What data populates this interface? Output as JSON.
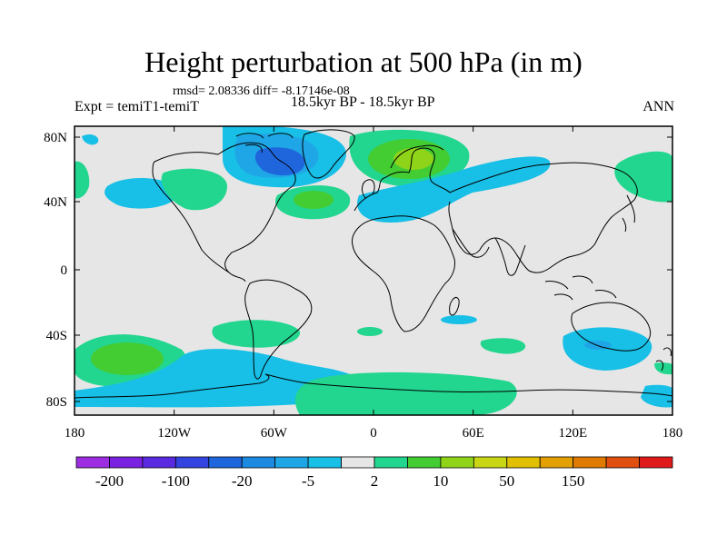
{
  "title": "Height perturbation at 500 hPa (in m)",
  "stats": "rmsd= 2.08336 diff= -8.17146e-08",
  "experiment": "Expt = temiT1-temiT",
  "period": "18.5kyr BP - 18.5kyr BP",
  "season": "ANN",
  "axes": {
    "x_ticks": [
      "180",
      "120W",
      "60W",
      "0",
      "60E",
      "120E",
      "180"
    ],
    "y_ticks": [
      "80N",
      "40N",
      "0",
      "40S",
      "80S"
    ]
  },
  "colorbar": {
    "colors": [
      "#9c2de0",
      "#7a20e0",
      "#5a2ae0",
      "#3344e0",
      "#1f66dd",
      "#1b8ae0",
      "#1fa6e6",
      "#18bfe6",
      "#e6e6e6",
      "#22d68f",
      "#44cc33",
      "#8fd419",
      "#c8d614",
      "#e0c000",
      "#e3a000",
      "#e07a00",
      "#e04e10",
      "#e01a1a"
    ],
    "labels": [
      "-200",
      "-100",
      "-20",
      "-5",
      "2",
      "10",
      "50",
      "150"
    ]
  }
}
